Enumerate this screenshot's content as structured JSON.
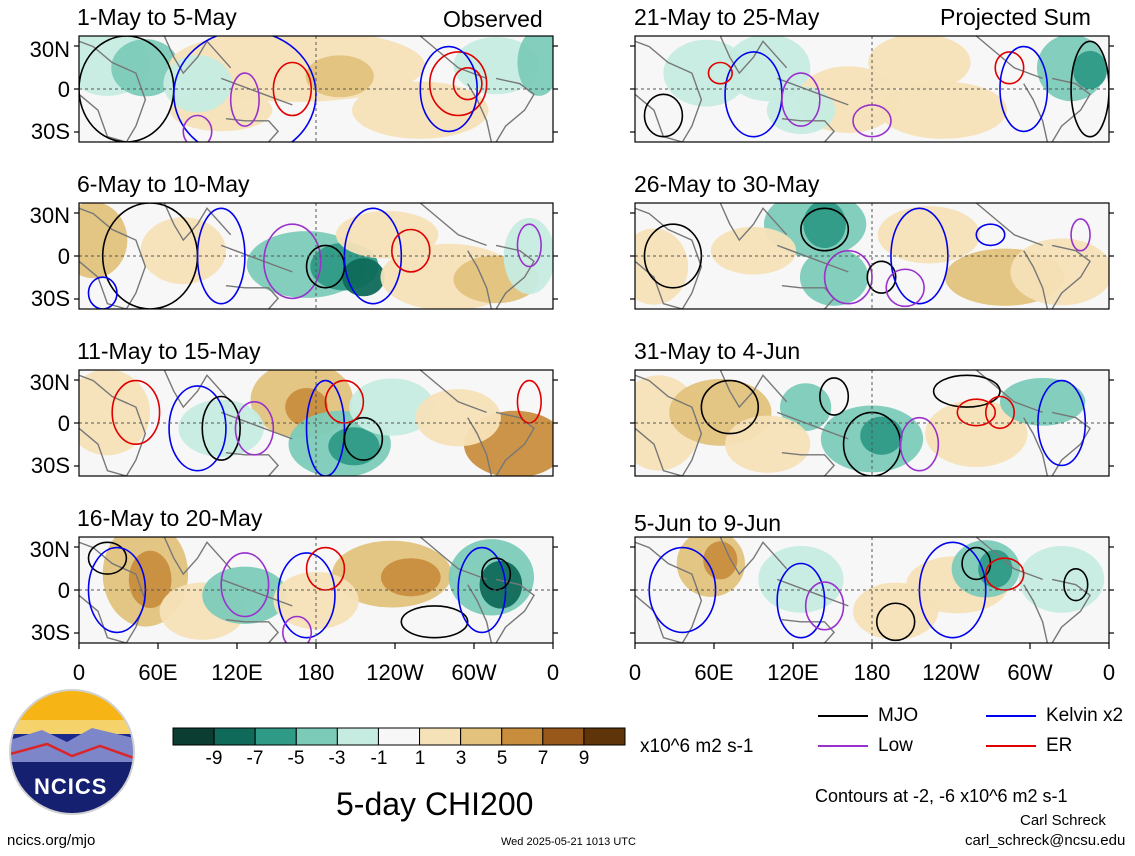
{
  "panels": [
    {
      "title": "1-May to 5-May",
      "tag": "Observed"
    },
    {
      "title": "6-May to 10-May",
      "tag": ""
    },
    {
      "title": "11-May to 15-May",
      "tag": ""
    },
    {
      "title": "16-May to 20-May",
      "tag": ""
    },
    {
      "title": "21-May to 25-May",
      "tag": "Projected Sum"
    },
    {
      "title": "26-May to 30-May",
      "tag": ""
    },
    {
      "title": "31-May to 4-Jun",
      "tag": ""
    },
    {
      "title": "5-Jun to 9-Jun",
      "tag": ""
    }
  ],
  "lat_ticks": [
    "30N",
    "0",
    "30S"
  ],
  "lon_ticks": [
    "0",
    "60E",
    "120E",
    "180",
    "120W",
    "60W",
    "0"
  ],
  "colorbar": {
    "labels": [
      "-9",
      "-7",
      "-5",
      "-3",
      "-1",
      "1",
      "3",
      "5",
      "7",
      "9"
    ],
    "units": "x10^6 m2 s-1",
    "colors": [
      "#0b3d32",
      "#0f6a5a",
      "#2f9a86",
      "#7ccbb9",
      "#c6ece2",
      "#f7f7f7",
      "#f5e2b8",
      "#e2c27d",
      "#c88e3e",
      "#98581a",
      "#5e3408"
    ]
  },
  "main_title": "5-day CHI200",
  "legend": [
    {
      "label": "MJO",
      "color": "#000000"
    },
    {
      "label": "Kelvin x2",
      "color": "#0000ee"
    },
    {
      "label": "Low",
      "color": "#9932cc"
    },
    {
      "label": "ER",
      "color": "#e00000"
    }
  ],
  "contours_note": "Contours at -2, -6 x10^6 m2 s-1",
  "logo_text": "NCICS",
  "site": "ncics.org/mjo",
  "timestamp": "Wed 2025-05-21 1013 UTC",
  "author": "Carl Schreck",
  "email": "carl_schreck@ncsu.edu",
  "palette": {
    "coast": "#777777"
  }
}
